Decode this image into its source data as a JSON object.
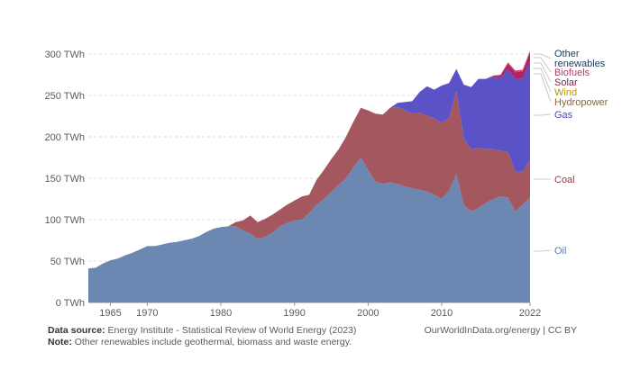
{
  "chart_data": {
    "type": "area",
    "stacked": true,
    "ylabel": "",
    "yunit": "TWh",
    "ylim": [
      0,
      300
    ],
    "yticks": [
      0,
      50,
      100,
      150,
      200,
      250,
      300
    ],
    "ytick_labels": [
      "0 TWh",
      "50 TWh",
      "100 TWh",
      "150 TWh",
      "200 TWh",
      "250 TWh",
      "300 TWh"
    ],
    "xlim": [
      1962,
      2022
    ],
    "xticks": [
      1965,
      1970,
      1980,
      1990,
      2000,
      2010,
      2022
    ],
    "x": [
      1962,
      1963,
      1964,
      1965,
      1966,
      1967,
      1968,
      1969,
      1970,
      1971,
      1972,
      1973,
      1974,
      1975,
      1976,
      1977,
      1978,
      1979,
      1980,
      1981,
      1982,
      1983,
      1984,
      1985,
      1986,
      1987,
      1988,
      1989,
      1990,
      1991,
      1992,
      1993,
      1994,
      1995,
      1996,
      1997,
      1998,
      1999,
      2000,
      2001,
      2002,
      2003,
      2004,
      2005,
      2006,
      2007,
      2008,
      2009,
      2010,
      2011,
      2012,
      2013,
      2014,
      2015,
      2016,
      2017,
      2018,
      2019,
      2020,
      2021,
      2022
    ],
    "series": [
      {
        "name": "Oil",
        "color": "#6d87b3",
        "label_color": "#5a7bb0",
        "values": [
          41,
          42,
          47,
          51,
          53,
          57,
          60,
          64,
          68,
          68,
          70,
          72,
          73,
          75,
          77,
          80,
          85,
          89,
          91,
          92,
          92,
          87,
          83,
          77,
          79,
          84,
          92,
          96,
          99,
          100,
          108,
          118,
          125,
          133,
          142,
          150,
          163,
          175,
          160,
          146,
          143,
          145,
          143,
          140,
          138,
          136,
          134,
          130,
          125,
          135,
          155,
          118,
          110,
          114,
          120,
          125,
          128,
          127,
          110,
          118,
          127
        ]
      },
      {
        "name": "Coal",
        "color": "#a5575f",
        "label_color": "#8f3b48",
        "values": [
          0,
          0,
          0,
          0,
          0,
          0,
          0,
          0,
          0,
          0,
          0,
          0,
          0,
          0,
          0,
          0,
          0,
          0,
          0,
          0,
          5,
          12,
          22,
          20,
          22,
          22,
          20,
          22,
          24,
          28,
          22,
          30,
          35,
          40,
          43,
          50,
          55,
          60,
          72,
          82,
          84,
          90,
          93,
          92,
          90,
          93,
          92,
          92,
          92,
          88,
          100,
          80,
          75,
          73,
          65,
          60,
          55,
          55,
          48,
          40,
          45
        ]
      },
      {
        "name": "Gas",
        "color": "#5b52c8",
        "label_color": "#4d4ab0",
        "values": [
          0,
          0,
          0,
          0,
          0,
          0,
          0,
          0,
          0,
          0,
          0,
          0,
          0,
          0,
          0,
          0,
          0,
          0,
          0,
          0,
          0,
          0,
          0,
          0,
          0,
          0,
          0,
          0,
          0,
          0,
          0,
          0,
          0,
          0,
          0,
          0,
          0,
          0,
          0,
          0,
          0,
          0,
          5,
          10,
          15,
          25,
          35,
          35,
          45,
          42,
          27,
          65,
          75,
          83,
          85,
          87,
          88,
          100,
          112,
          112,
          120
        ]
      },
      {
        "name": "Hydropower",
        "color": "#a86b1e",
        "label_color": "#9a6422",
        "values": [
          0,
          0,
          0,
          0,
          0,
          0,
          0,
          0,
          0,
          0,
          0,
          0,
          0,
          0,
          0,
          0,
          0,
          0,
          0,
          0,
          0,
          0,
          0,
          0,
          0,
          0,
          0,
          0,
          0,
          0,
          0,
          0,
          0,
          0,
          0,
          0,
          0,
          0,
          0,
          0,
          0,
          0,
          0,
          0,
          0,
          0,
          0,
          0,
          0,
          0,
          0,
          0,
          0,
          0,
          0,
          0,
          0,
          0,
          0,
          0,
          0
        ]
      },
      {
        "name": "Wind",
        "color": "#d4a017",
        "label_color": "#b8950b",
        "values": [
          0,
          0,
          0,
          0,
          0,
          0,
          0,
          0,
          0,
          0,
          0,
          0,
          0,
          0,
          0,
          0,
          0,
          0,
          0,
          0,
          0,
          0,
          0,
          0,
          0,
          0,
          0,
          0,
          0,
          0,
          0,
          0,
          0,
          0,
          0,
          0,
          0,
          0,
          0,
          0,
          0,
          0,
          0,
          0,
          0,
          0,
          0,
          0,
          0,
          0,
          0,
          0,
          0,
          0,
          0,
          0,
          0,
          0,
          0,
          0,
          0
        ]
      },
      {
        "name": "Solar",
        "color": "#b02363",
        "label_color": "#7a1d4a",
        "values": [
          0,
          0,
          0,
          0,
          0,
          0,
          0,
          0,
          0,
          0,
          0,
          0,
          0,
          0,
          0,
          0,
          0,
          0,
          0,
          0,
          0,
          0,
          0,
          0,
          0,
          0,
          0,
          0,
          0,
          0,
          0,
          0,
          0,
          0,
          0,
          0,
          0,
          0,
          0,
          0,
          0,
          0,
          0,
          0,
          0,
          0,
          0,
          0,
          0,
          0,
          0,
          0,
          0,
          0,
          0,
          1,
          3,
          6,
          8,
          9,
          10
        ]
      },
      {
        "name": "Biofuels",
        "color": "#d73c74",
        "label_color": "#c0396b",
        "values": [
          0,
          0,
          0,
          0,
          0,
          0,
          0,
          0,
          0,
          0,
          0,
          0,
          0,
          0,
          0,
          0,
          0,
          0,
          0,
          0,
          0,
          0,
          0,
          0,
          0,
          0,
          0,
          0,
          0,
          0,
          0,
          0,
          0,
          0,
          0,
          0,
          0,
          0,
          0,
          0,
          0,
          0,
          0,
          0,
          0,
          0,
          0,
          0,
          0,
          0,
          0,
          0,
          0,
          0,
          0,
          1,
          1,
          2,
          2,
          2,
          2
        ]
      },
      {
        "name": "Other renewables",
        "color": "#1d3a5a",
        "label_color": "#1d3a5a",
        "values": [
          0,
          0,
          0,
          0,
          0,
          0,
          0,
          0,
          0,
          0,
          0,
          0,
          0,
          0,
          0,
          0,
          0,
          0,
          0,
          0,
          0,
          0,
          0,
          0,
          0,
          0,
          0,
          0,
          0,
          0,
          0,
          0,
          0,
          0,
          0,
          0,
          0,
          0,
          0,
          0,
          0,
          0,
          0,
          0,
          0,
          0,
          0,
          0,
          0,
          0,
          0,
          0,
          0,
          0,
          0,
          0,
          0,
          0,
          0,
          0,
          0
        ]
      }
    ],
    "legend_order": [
      "Other renewables",
      "Biofuels",
      "Solar",
      "Wind",
      "Hydropower",
      "Gas",
      "Coal",
      "Oil"
    ],
    "legend_placement": "right",
    "grid": true
  },
  "footer": {
    "source_label": "Data source:",
    "source_text": "Energy Institute - Statistical Review of World Energy (2023)",
    "note_label": "Note:",
    "note_text": "Other renewables include geothermal, biomass and waste energy.",
    "credit": "OurWorldInData.org/energy | CC BY"
  }
}
